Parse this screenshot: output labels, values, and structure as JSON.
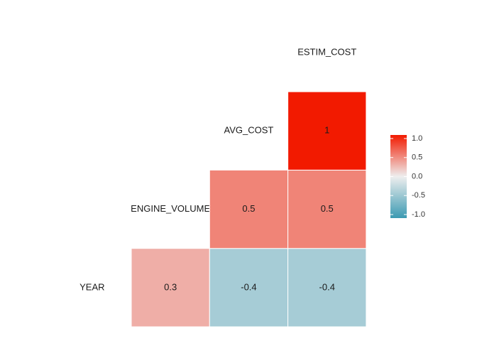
{
  "chart_data": {
    "type": "heatmap",
    "variables": [
      "YEAR",
      "ENGINE_VOLUME",
      "AVG_COST",
      "ESTIM_COST"
    ],
    "values": [
      [
        0.3,
        -0.4,
        -0.4
      ],
      [
        0.5,
        0.5
      ],
      [
        1
      ]
    ],
    "colors": {
      "low": "#3b9ab2",
      "mid": "#eeeeee",
      "high": "#f21a00"
    },
    "colorbar_lim": [
      -1,
      1
    ],
    "colorbar_ticks": [
      {
        "value": 1,
        "label": "1.0"
      },
      0.5,
      {
        "value": 0,
        "label": "0.0"
      },
      -0.5,
      {
        "value": -1,
        "label": "-1.0"
      }
    ]
  }
}
